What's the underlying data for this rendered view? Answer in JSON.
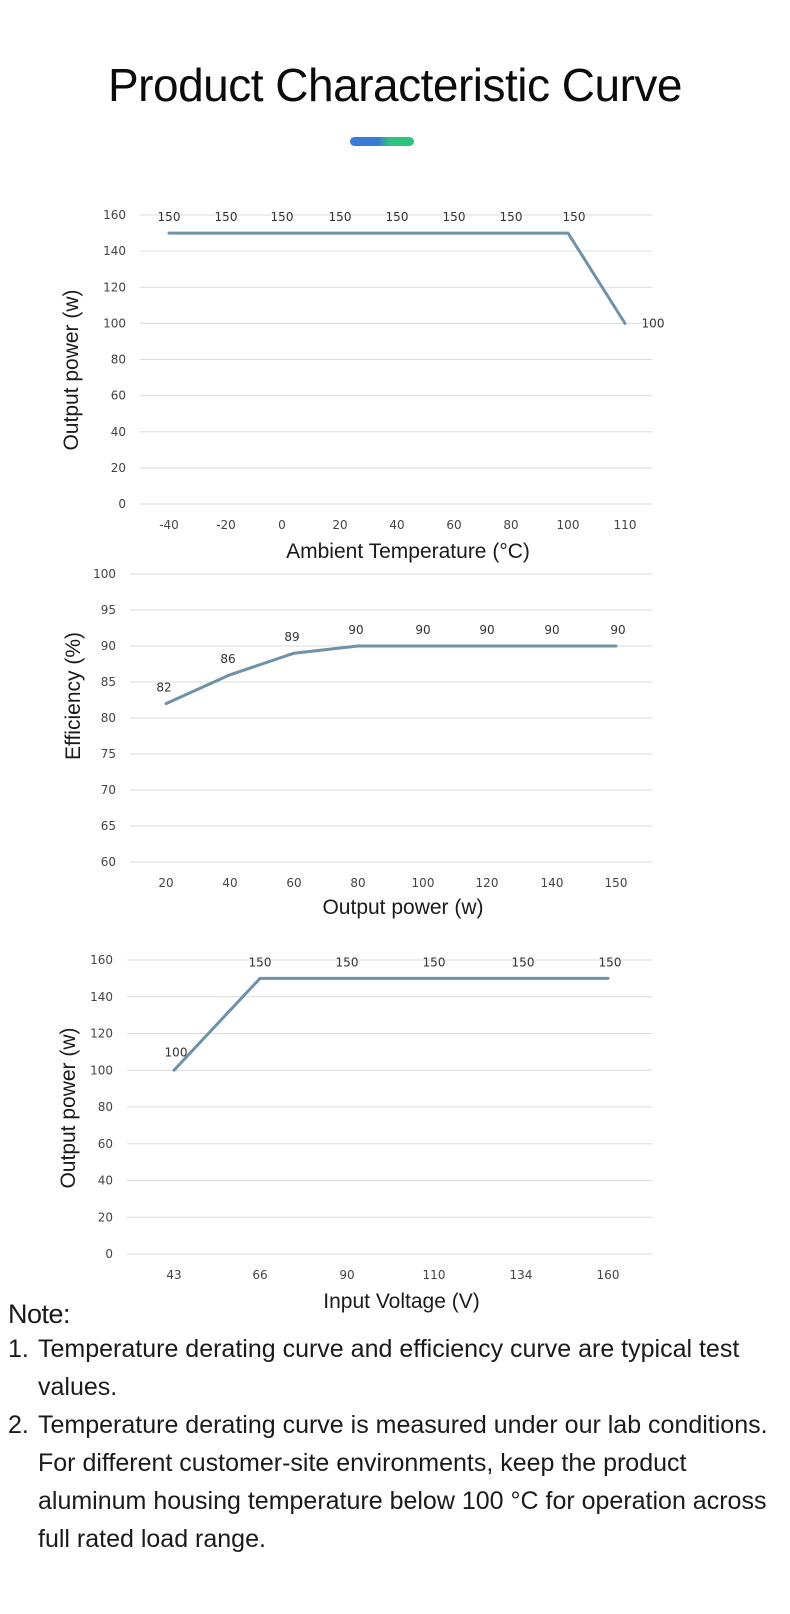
{
  "page": {
    "title": "Product Characteristic Curve",
    "accent_colors": [
      "#3a7bd5",
      "#2ec27e"
    ]
  },
  "chart_data": [
    {
      "type": "line",
      "x": [
        "-40",
        "-20",
        "0",
        "20",
        "40",
        "60",
        "80",
        "100",
        "110"
      ],
      "series": [
        {
          "values": [
            150,
            150,
            150,
            150,
            150,
            150,
            150,
            150,
            100
          ],
          "color": "#6e92aa"
        }
      ],
      "data_labels": [
        "150",
        "150",
        "150",
        "150",
        "150",
        "150",
        "150",
        "150",
        "100"
      ],
      "xlabel": "Ambient Temperature (°C)",
      "ylabel": "Output power (w)",
      "ylim": [
        0,
        160
      ],
      "yticks": [
        "0",
        "20",
        "40",
        "60",
        "80",
        "100",
        "120",
        "140",
        "160"
      ],
      "grid": true
    },
    {
      "type": "line",
      "x": [
        "20",
        "40",
        "60",
        "80",
        "100",
        "120",
        "140",
        "150"
      ],
      "series": [
        {
          "values": [
            82,
            86,
            89,
            90,
            90,
            90,
            90,
            90
          ],
          "color": "#6e92aa"
        }
      ],
      "data_labels": [
        "82",
        "86",
        "89",
        "90",
        "90",
        "90",
        "90",
        "90"
      ],
      "xlabel": "Output power (w)",
      "ylabel": "Efficiency (%)",
      "ylim": [
        60,
        100
      ],
      "yticks": [
        "60",
        "65",
        "70",
        "75",
        "80",
        "85",
        "90",
        "95",
        "100"
      ],
      "grid": true
    },
    {
      "type": "line",
      "x": [
        "43",
        "66",
        "90",
        "110",
        "134",
        "160"
      ],
      "series": [
        {
          "values": [
            100,
            150,
            150,
            150,
            150,
            150
          ],
          "color": "#6e92aa"
        }
      ],
      "data_labels": [
        "100",
        "150",
        "150",
        "150",
        "150",
        "150"
      ],
      "xlabel": "Input Voltage (V)",
      "ylabel": "Output power (w)",
      "ylim": [
        0,
        160
      ],
      "yticks": [
        "0",
        "20",
        "40",
        "60",
        "80",
        "100",
        "120",
        "140",
        "160"
      ],
      "grid": true
    }
  ],
  "notes": {
    "heading": "Note:",
    "items": [
      {
        "number": "1.",
        "text": "Temperature derating curve and efficiency curve are typical test values."
      },
      {
        "number": "2.",
        "text": "Temperature derating curve is measured under our lab conditions. For different customer-site environments, keep the product aluminum housing temperature below 100 °C for operation across full rated load range."
      }
    ]
  }
}
